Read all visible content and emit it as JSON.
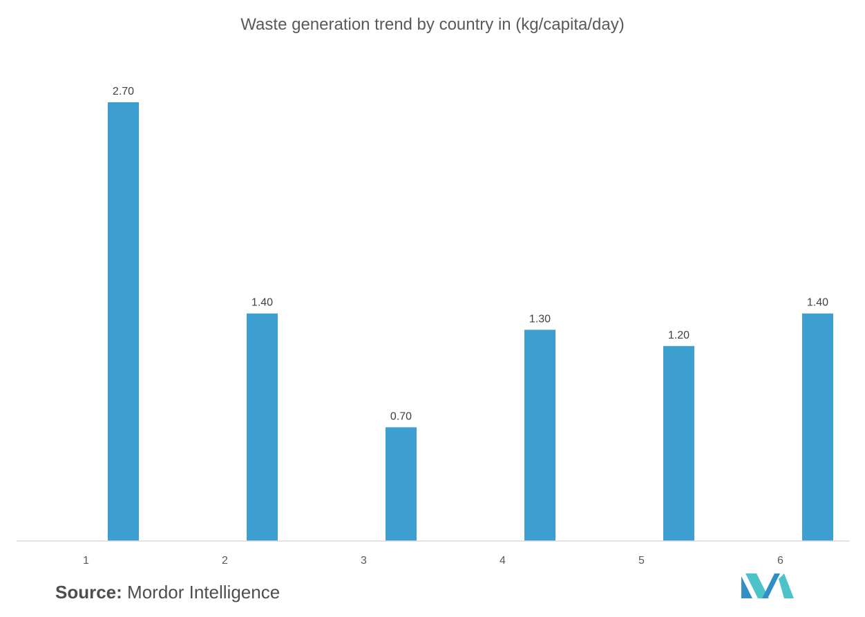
{
  "chart_data": {
    "type": "bar",
    "title": "Waste generation trend by country in (kg/capita/day)",
    "categories": [
      "1",
      "2",
      "3",
      "4",
      "5",
      "6"
    ],
    "values": [
      2.7,
      1.4,
      0.7,
      1.3,
      1.2,
      1.4
    ],
    "value_labels": [
      "2.70",
      "1.40",
      "0.70",
      "1.30",
      "1.20",
      "1.40"
    ],
    "xlabel": "",
    "ylabel": "",
    "ylim": [
      0,
      2.7
    ],
    "grid": false,
    "bar_color": "#3d9fd0",
    "axis_color": "#d9d9d9"
  },
  "source": {
    "label": "Source:",
    "text": "Mordor Intelligence"
  },
  "logo": {
    "icon": "mordor-intelligence-logo-icon",
    "colors": [
      "#2f8fc6",
      "#4cc3c9"
    ]
  }
}
